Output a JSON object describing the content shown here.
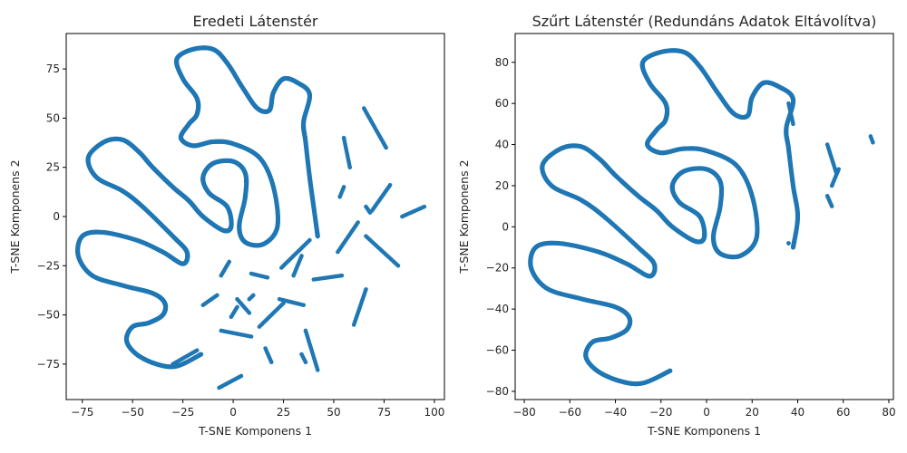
{
  "chart_data": [
    {
      "type": "scatter",
      "title": "Eredeti Látenstér",
      "xlabel": "T-SNE Komponens 1",
      "ylabel": "T-SNE Komponens 2",
      "xlim": [
        -83,
        105
      ],
      "ylim": [
        -93,
        93
      ],
      "xticks": [
        -75,
        -50,
        -25,
        0,
        25,
        50,
        75,
        100
      ],
      "yticks": [
        -75,
        -50,
        -25,
        0,
        25,
        50,
        75
      ],
      "xtick_labels": [
        "−75",
        "−50",
        "−25",
        "0",
        "25",
        "50",
        "75",
        "100"
      ],
      "ytick_labels": [
        "−75",
        "−50",
        "−25",
        "0",
        "25",
        "50",
        "75"
      ],
      "grid": false,
      "color": "#1f77b4",
      "curve": [
        [
          -16,
          -70
        ],
        [
          -28,
          -76
        ],
        [
          -38,
          -75
        ],
        [
          -48,
          -70
        ],
        [
          -53,
          -63
        ],
        [
          -50,
          -56
        ],
        [
          -42,
          -54
        ],
        [
          -35,
          -50
        ],
        [
          -34,
          -44
        ],
        [
          -40,
          -39
        ],
        [
          -55,
          -35
        ],
        [
          -70,
          -30
        ],
        [
          -77,
          -20
        ],
        [
          -75,
          -10
        ],
        [
          -65,
          -8
        ],
        [
          -48,
          -12
        ],
        [
          -35,
          -18
        ],
        [
          -25,
          -24
        ],
        [
          -23,
          -18
        ],
        [
          -30,
          -10
        ],
        [
          -45,
          5
        ],
        [
          -55,
          13
        ],
        [
          -68,
          20
        ],
        [
          -72,
          30
        ],
        [
          -64,
          38
        ],
        [
          -55,
          39
        ],
        [
          -47,
          33
        ],
        [
          -40,
          25
        ],
        [
          -30,
          15
        ],
        [
          -22,
          8
        ],
        [
          -15,
          0
        ],
        [
          -5,
          -7
        ],
        [
          -1,
          -5
        ],
        [
          -3,
          5
        ],
        [
          -12,
          12
        ],
        [
          -15,
          20
        ],
        [
          -10,
          27
        ],
        [
          0,
          28
        ],
        [
          6,
          22
        ],
        [
          6,
          10
        ],
        [
          3,
          -5
        ],
        [
          6,
          -13
        ],
        [
          15,
          -14
        ],
        [
          22,
          -5
        ],
        [
          20,
          15
        ],
        [
          13,
          30
        ],
        [
          0,
          37
        ],
        [
          -10,
          38
        ],
        [
          -20,
          36
        ],
        [
          -26,
          40
        ],
        [
          -22,
          47
        ],
        [
          -18,
          52
        ],
        [
          -18,
          60
        ],
        [
          -25,
          70
        ],
        [
          -28,
          80
        ],
        [
          -20,
          85
        ],
        [
          -10,
          85
        ],
        [
          -3,
          78
        ],
        [
          5,
          65
        ],
        [
          12,
          55
        ],
        [
          18,
          54
        ],
        [
          20,
          63
        ],
        [
          25,
          70
        ],
        [
          32,
          68
        ],
        [
          38,
          62
        ],
        [
          35,
          48
        ],
        [
          36,
          38
        ],
        [
          38,
          20
        ],
        [
          40,
          5
        ],
        [
          42,
          -10
        ]
      ],
      "fragments": [
        [
          [
            55,
            40
          ],
          [
            58,
            25
          ]
        ],
        [
          [
            55,
            15
          ],
          [
            53,
            10
          ]
        ],
        [
          [
            62,
            -3
          ],
          [
            52,
            -18
          ]
        ],
        [
          [
            66,
            5
          ],
          [
            68,
            2
          ]
        ],
        [
          [
            65,
            55
          ],
          [
            76,
            35
          ]
        ],
        [
          [
            69,
            3
          ],
          [
            78,
            16
          ]
        ],
        [
          [
            84,
            0
          ],
          [
            95,
            5
          ]
        ],
        [
          [
            66,
            -10
          ],
          [
            82,
            -25
          ]
        ],
        [
          [
            24,
            -26
          ],
          [
            38,
            -12
          ]
        ],
        [
          [
            40,
            -32
          ],
          [
            54,
            -30
          ]
        ],
        [
          [
            60,
            -55
          ],
          [
            66,
            -37
          ]
        ],
        [
          [
            23,
            -42
          ],
          [
            35,
            -45
          ]
        ],
        [
          [
            13,
            -56
          ],
          [
            25,
            -44
          ]
        ],
        [
          [
            9,
            -29
          ],
          [
            17,
            -31
          ]
        ],
        [
          [
            -15,
            -45
          ],
          [
            -8,
            -40
          ]
        ],
        [
          [
            -6,
            -30
          ],
          [
            -2,
            -23
          ]
        ],
        [
          [
            -18,
            -68
          ],
          [
            -30,
            -75
          ]
        ],
        [
          [
            16,
            -67
          ],
          [
            19,
            -74
          ]
        ],
        [
          [
            -7,
            -87
          ],
          [
            4,
            -81
          ]
        ],
        [
          [
            -6,
            -58
          ],
          [
            9,
            -61
          ]
        ],
        [
          [
            2,
            -42
          ],
          [
            8,
            -49
          ]
        ],
        [
          [
            -1,
            -51
          ],
          [
            2,
            -46
          ]
        ],
        [
          [
            36,
            -58
          ],
          [
            42,
            -78
          ]
        ],
        [
          [
            34,
            -70
          ],
          [
            36,
            -74
          ]
        ],
        [
          [
            8,
            -42
          ],
          [
            10,
            -40
          ]
        ],
        [
          [
            30,
            -30
          ],
          [
            34,
            -20
          ]
        ]
      ]
    },
    {
      "type": "scatter",
      "title": "Szűrt Látenstér (Redundáns Adatok Eltávolítva)",
      "xlabel": "T-SNE Komponens 1",
      "ylabel": "T-SNE Komponens 2",
      "xlim": [
        -84,
        82
      ],
      "ylim": [
        -84,
        94
      ],
      "xticks": [
        -80,
        -60,
        -40,
        -20,
        0,
        20,
        40,
        60,
        80
      ],
      "yticks": [
        -80,
        -60,
        -40,
        -20,
        0,
        20,
        40,
        60,
        80
      ],
      "xtick_labels": [
        "−80",
        "−60",
        "−40",
        "−20",
        "0",
        "20",
        "40",
        "60",
        "80"
      ],
      "ytick_labels": [
        "−80",
        "−60",
        "−40",
        "−20",
        "0",
        "20",
        "40",
        "60",
        "80"
      ],
      "grid": false,
      "color": "#1f77b4",
      "curve": [
        [
          -16,
          -70
        ],
        [
          -28,
          -76
        ],
        [
          -38,
          -75
        ],
        [
          -48,
          -70
        ],
        [
          -53,
          -63
        ],
        [
          -50,
          -56
        ],
        [
          -42,
          -54
        ],
        [
          -35,
          -50
        ],
        [
          -34,
          -44
        ],
        [
          -40,
          -39
        ],
        [
          -55,
          -35
        ],
        [
          -70,
          -30
        ],
        [
          -77,
          -20
        ],
        [
          -75,
          -10
        ],
        [
          -65,
          -8
        ],
        [
          -48,
          -12
        ],
        [
          -35,
          -18
        ],
        [
          -25,
          -24
        ],
        [
          -23,
          -18
        ],
        [
          -30,
          -10
        ],
        [
          -45,
          5
        ],
        [
          -55,
          13
        ],
        [
          -68,
          20
        ],
        [
          -72,
          30
        ],
        [
          -64,
          38
        ],
        [
          -55,
          39
        ],
        [
          -47,
          33
        ],
        [
          -40,
          25
        ],
        [
          -30,
          15
        ],
        [
          -22,
          8
        ],
        [
          -15,
          0
        ],
        [
          -5,
          -7
        ],
        [
          -1,
          -5
        ],
        [
          -3,
          5
        ],
        [
          -12,
          12
        ],
        [
          -15,
          20
        ],
        [
          -10,
          27
        ],
        [
          0,
          28
        ],
        [
          6,
          22
        ],
        [
          6,
          10
        ],
        [
          3,
          -5
        ],
        [
          6,
          -13
        ],
        [
          15,
          -14
        ],
        [
          22,
          -5
        ],
        [
          20,
          15
        ],
        [
          13,
          30
        ],
        [
          0,
          37
        ],
        [
          -10,
          38
        ],
        [
          -20,
          36
        ],
        [
          -26,
          40
        ],
        [
          -22,
          47
        ],
        [
          -18,
          52
        ],
        [
          -18,
          60
        ],
        [
          -25,
          70
        ],
        [
          -28,
          80
        ],
        [
          -20,
          85
        ],
        [
          -10,
          85
        ],
        [
          -3,
          78
        ],
        [
          5,
          65
        ],
        [
          12,
          55
        ],
        [
          18,
          54
        ],
        [
          20,
          63
        ],
        [
          25,
          70
        ],
        [
          32,
          68
        ],
        [
          38,
          62
        ],
        [
          35,
          48
        ],
        [
          36,
          38
        ],
        [
          38,
          20
        ],
        [
          40,
          5
        ],
        [
          38,
          -10
        ]
      ],
      "fragments": [
        [
          [
            36,
            60
          ],
          [
            38,
            50
          ]
        ],
        [
          [
            53,
            40
          ],
          [
            57,
            26
          ]
        ],
        [
          [
            53,
            15
          ],
          [
            55,
            10
          ]
        ],
        [
          [
            58,
            28
          ],
          [
            55,
            20
          ]
        ],
        [
          [
            72,
            44
          ],
          [
            73,
            41
          ]
        ],
        [
          [
            36,
            -8
          ],
          [
            36,
            -8
          ]
        ]
      ]
    }
  ]
}
